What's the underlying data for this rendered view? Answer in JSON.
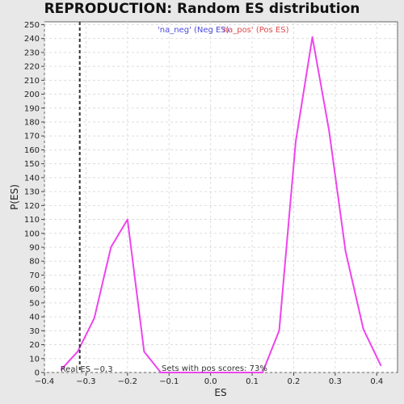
{
  "chart_data": {
    "type": "line",
    "title": "REPRODUCTION: Random ES distribution",
    "xlabel": "ES",
    "ylabel": "P(ES)",
    "xlim": [
      -0.4,
      0.45
    ],
    "ylim": [
      0,
      252
    ],
    "x_ticks": [
      -0.4,
      -0.3,
      -0.2,
      -0.1,
      0.0,
      0.1,
      0.2,
      0.3,
      0.4
    ],
    "x_tick_labels": [
      "−0.4",
      "−0.3",
      "−0.2",
      "−0.1",
      "0.0",
      "0.1",
      "0.2",
      "0.3",
      "0.4"
    ],
    "y_ticks": [
      0,
      10,
      20,
      30,
      40,
      50,
      60,
      70,
      80,
      90,
      100,
      110,
      120,
      130,
      140,
      150,
      160,
      170,
      180,
      190,
      200,
      210,
      220,
      230,
      240,
      250
    ],
    "grid": true,
    "legend": [
      {
        "label": "'na_neg' (Neg ES)",
        "color": "#4a4ae0"
      },
      {
        "label": "'na_pos' (Pos ES)",
        "color": "#e04a4a"
      }
    ],
    "series": [
      {
        "color": "#ee44ee",
        "x": [
          -0.36,
          -0.32,
          -0.28,
          -0.24,
          -0.2,
          -0.16,
          -0.12,
          -0.08,
          -0.04,
          0.0,
          0.04,
          0.08,
          0.125,
          0.165,
          0.205,
          0.245,
          0.285,
          0.325,
          0.368,
          0.41
        ],
        "y": [
          2,
          15,
          39,
          90,
          110,
          15,
          0,
          0,
          0,
          0,
          0,
          0,
          0,
          30,
          166,
          241,
          174,
          87,
          31,
          5
        ]
      }
    ],
    "real_es": {
      "x": -0.315,
      "label": "Real ES −0.3"
    },
    "annotation": "Sets with pos scores: 73%"
  }
}
